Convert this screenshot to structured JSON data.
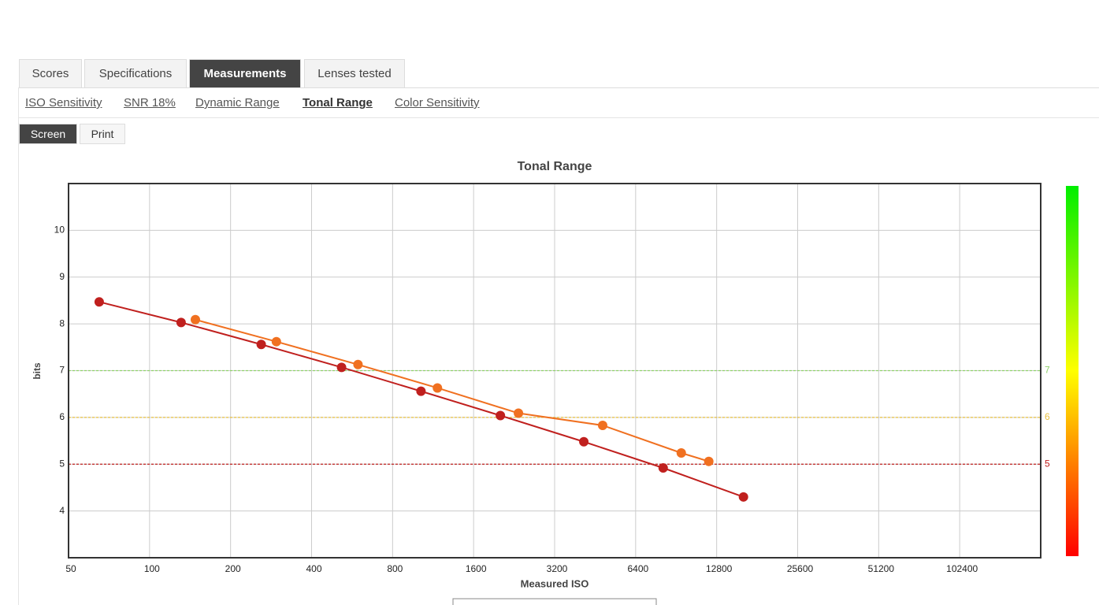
{
  "tabs": {
    "items": [
      "Scores",
      "Specifications",
      "Measurements",
      "Lenses tested"
    ],
    "active": 2
  },
  "subtabs": {
    "items": [
      "ISO Sensitivity",
      "SNR 18%",
      "Dynamic Range",
      "Tonal Range",
      "Color Sensitivity"
    ],
    "active": 3
  },
  "modes": {
    "items": [
      "Screen",
      "Print"
    ],
    "active": 0
  },
  "chart_data": {
    "type": "line",
    "title": "Tonal Range",
    "x_label": "Measured ISO",
    "y_label": "bits",
    "xlog": true,
    "grid": true,
    "xlim": [
      50,
      204800
    ],
    "xticks": [
      50,
      100,
      200,
      400,
      800,
      1600,
      3200,
      6400,
      12800,
      25600,
      51200,
      102400
    ],
    "ylim": [
      3,
      11
    ],
    "yticks": [
      4,
      5,
      6,
      7,
      8,
      9,
      10
    ],
    "reference_lines": [
      {
        "value": 7,
        "color": "#8fd16a"
      },
      {
        "value": 6,
        "color": "#e8c040"
      },
      {
        "value": 5,
        "color": "#c0201e"
      }
    ],
    "series": [
      {
        "color": "#c0201e",
        "x": [
          65,
          131,
          260,
          517,
          1020,
          2012,
          4108,
          8100,
          16100
        ],
        "values": [
          8.47,
          8.03,
          7.56,
          7.07,
          6.56,
          6.04,
          5.48,
          4.92,
          4.3
        ]
      },
      {
        "color": "#f07020",
        "x": [
          148,
          296,
          595,
          1174,
          2348,
          4826,
          9457,
          11966
        ],
        "values": [
          8.09,
          7.62,
          7.13,
          6.63,
          6.09,
          5.83,
          5.24,
          5.06
        ]
      }
    ]
  }
}
